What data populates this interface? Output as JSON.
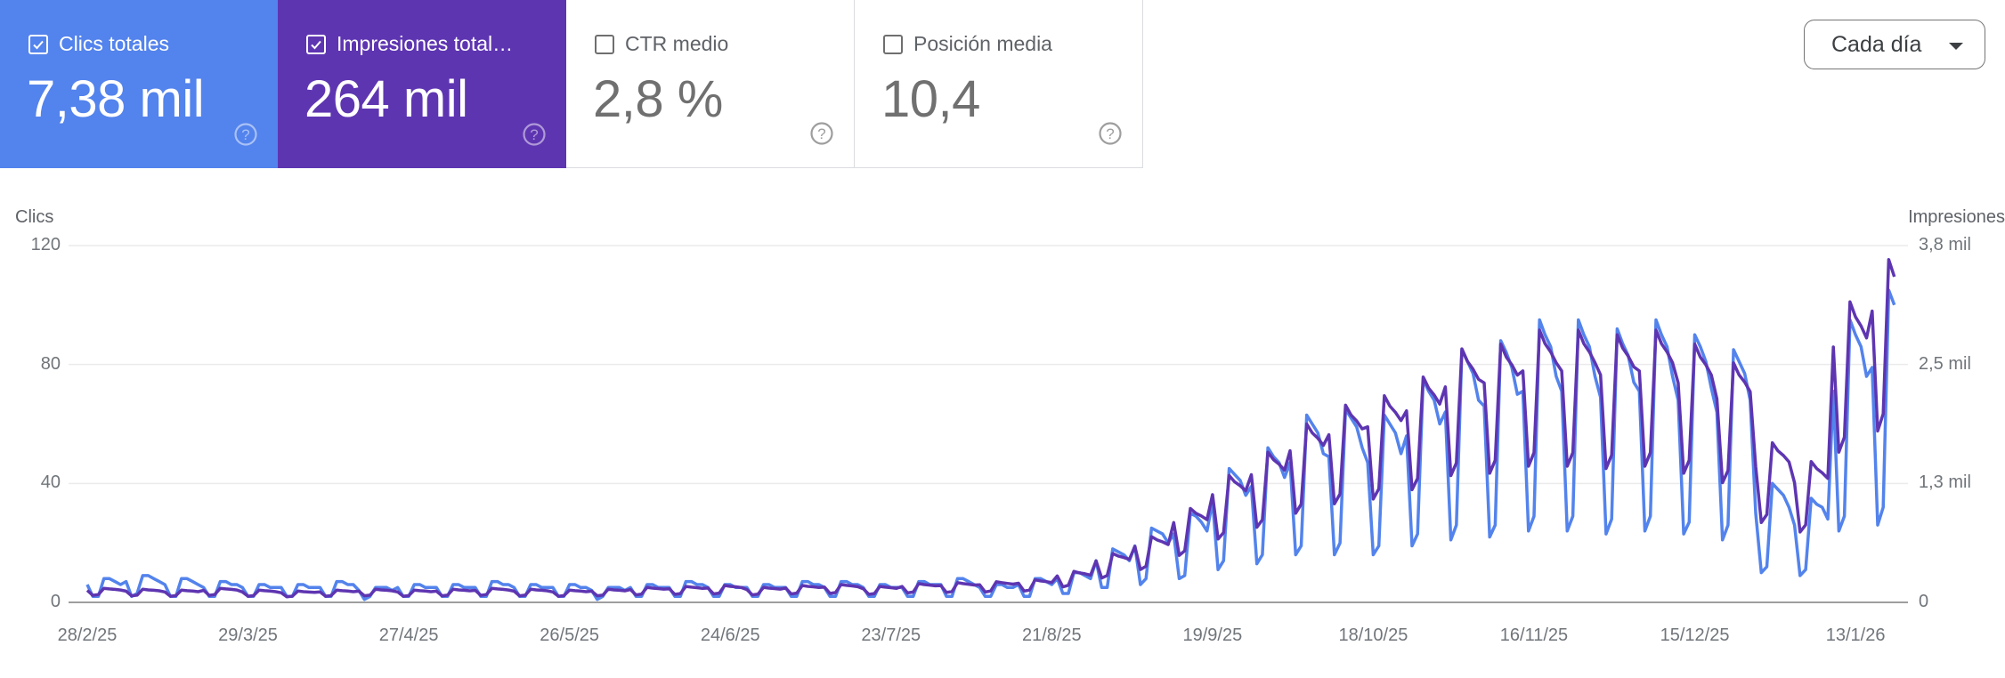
{
  "metrics": [
    {
      "label": "Clics totales",
      "value": "7,38 mil",
      "checked": true,
      "color": "#5383EC",
      "help_icon": "help-circle-icon"
    },
    {
      "label": "Impresiones total…",
      "value": "264 mil",
      "checked": true,
      "color": "#5E35B1",
      "help_icon": "help-circle-icon"
    },
    {
      "label": "CTR medio",
      "value": "2,8 %",
      "checked": false,
      "color": "#ffffff",
      "help_icon": "help-circle-icon"
    },
    {
      "label": "Posición media",
      "value": "10,4",
      "checked": false,
      "color": "#ffffff",
      "help_icon": "help-circle-icon"
    }
  ],
  "granularity": {
    "selected": "Cada día",
    "icon": "caret-down-icon"
  },
  "colors": {
    "clicks": "#5383EC",
    "impressions": "#5E35B1",
    "grid": "#ebebeb",
    "baseline": "#9e9e9e"
  },
  "chart_data": {
    "type": "line",
    "title": "",
    "xlabel": "",
    "ylabel": "Clics",
    "y2label": "Impresiones",
    "left_axis": {
      "label": "Clics",
      "ticks": [
        "0",
        "40",
        "80",
        "120"
      ],
      "range": [
        0,
        120
      ]
    },
    "right_axis": {
      "label": "Impresiones",
      "ticks": [
        "0",
        "1,3 mil",
        "2,5 mil",
        "3,8 mil"
      ],
      "range": [
        0,
        3800
      ]
    },
    "x_ticks": [
      "28/2/25",
      "29/3/25",
      "27/4/25",
      "26/5/25",
      "24/6/25",
      "23/7/25",
      "21/8/25",
      "19/9/25",
      "18/10/25",
      "16/11/25",
      "15/12/25",
      "13/1/26"
    ],
    "x_tick_day_index": [
      0,
      29,
      58,
      87,
      116,
      145,
      174,
      203,
      232,
      261,
      290,
      319
    ],
    "x_start": "28/2/25",
    "x_step": "1 day",
    "grid": true,
    "legend": "metric cards above chart",
    "series": [
      {
        "name": "Clics",
        "axis": "left",
        "color": "#5383EC",
        "values": [
          6,
          2,
          2,
          8,
          8,
          7,
          6,
          7,
          2,
          3,
          9,
          9,
          8,
          7,
          6,
          2,
          2,
          8,
          8,
          7,
          6,
          5,
          2,
          2,
          7,
          7,
          6,
          6,
          5,
          2,
          2,
          6,
          6,
          5,
          5,
          5,
          2,
          2,
          6,
          6,
          5,
          5,
          5,
          2,
          2,
          7,
          7,
          6,
          6,
          4,
          1,
          2,
          5,
          5,
          5,
          4,
          5,
          2,
          2,
          6,
          6,
          5,
          5,
          5,
          2,
          2,
          6,
          6,
          5,
          5,
          5,
          2,
          2,
          7,
          7,
          6,
          6,
          5,
          2,
          2,
          6,
          6,
          5,
          5,
          5,
          2,
          2,
          6,
          6,
          5,
          5,
          4,
          1,
          2,
          5,
          5,
          5,
          4,
          5,
          2,
          2,
          6,
          6,
          5,
          5,
          5,
          2,
          2,
          7,
          7,
          6,
          6,
          5,
          2,
          2,
          6,
          6,
          5,
          5,
          5,
          2,
          2,
          6,
          6,
          5,
          5,
          5,
          2,
          2,
          7,
          7,
          6,
          6,
          5,
          2,
          2,
          7,
          7,
          6,
          6,
          5,
          2,
          2,
          6,
          6,
          5,
          5,
          5,
          2,
          2,
          7,
          7,
          6,
          6,
          6,
          2,
          2,
          8,
          8,
          7,
          6,
          5,
          2,
          2,
          6,
          6,
          5,
          5,
          6,
          2,
          2,
          8,
          8,
          7,
          6,
          8,
          3,
          3,
          10,
          10,
          9,
          8,
          14,
          5,
          5,
          18,
          17,
          16,
          14,
          19,
          6,
          8,
          25,
          24,
          23,
          20,
          23,
          8,
          9,
          30,
          29,
          27,
          24,
          34,
          11,
          14,
          45,
          43,
          41,
          36,
          39,
          13,
          16,
          52,
          49,
          47,
          42,
          47,
          16,
          19,
          63,
          60,
          57,
          50,
          49,
          16,
          20,
          65,
          62,
          59,
          52,
          47,
          16,
          19,
          63,
          60,
          57,
          50,
          56,
          19,
          23,
          75,
          71,
          68,
          60,
          64,
          21,
          26,
          85,
          81,
          77,
          68,
          66,
          22,
          26,
          88,
          84,
          79,
          70,
          71,
          24,
          29,
          95,
          90,
          86,
          76,
          71,
          24,
          29,
          95,
          90,
          86,
          76,
          69,
          23,
          28,
          92,
          87,
          83,
          74,
          71,
          24,
          29,
          95,
          90,
          86,
          76,
          68,
          23,
          27,
          90,
          86,
          81,
          72,
          64,
          21,
          26,
          85,
          81,
          77,
          68,
          30,
          10,
          12,
          40,
          38,
          36,
          32,
          26,
          9,
          11,
          35,
          33,
          32,
          28,
          71,
          24,
          29,
          95,
          90,
          86,
          76,
          79,
          26,
          32,
          105,
          100
        ]
      },
      {
        "name": "Impresiones",
        "axis": "right",
        "color": "#5E35B1",
        "values": [
          128,
          75,
          83,
          150,
          143,
          138,
          132,
          119,
          70,
          77,
          140,
          133,
          129,
          123,
          111,
          65,
          72,
          130,
          124,
          120,
          114,
          128,
          75,
          83,
          150,
          143,
          138,
          132,
          111,
          65,
          72,
          130,
          124,
          120,
          114,
          102,
          60,
          66,
          120,
          114,
          110,
          106,
          111,
          65,
          72,
          130,
          124,
          120,
          114,
          119,
          70,
          77,
          140,
          133,
          129,
          123,
          111,
          65,
          72,
          130,
          124,
          120,
          114,
          119,
          70,
          77,
          140,
          133,
          129,
          123,
          128,
          75,
          83,
          150,
          143,
          138,
          132,
          119,
          70,
          77,
          140,
          133,
          129,
          123,
          111,
          65,
          72,
          130,
          124,
          120,
          114,
          119,
          70,
          77,
          140,
          133,
          129,
          123,
          136,
          80,
          88,
          160,
          152,
          147,
          141,
          145,
          85,
          94,
          170,
          162,
          156,
          150,
          153,
          90,
          99,
          180,
          171,
          166,
          158,
          136,
          80,
          88,
          160,
          152,
          147,
          141,
          153,
          90,
          99,
          180,
          171,
          166,
          158,
          162,
          95,
          105,
          190,
          181,
          175,
          167,
          145,
          85,
          94,
          170,
          162,
          156,
          150,
          170,
          100,
          110,
          200,
          190,
          184,
          176,
          179,
          105,
          116,
          210,
          200,
          193,
          185,
          187,
          110,
          121,
          220,
          209,
          202,
          194,
          204,
          120,
          132,
          240,
          228,
          221,
          211,
          281,
          165,
          182,
          330,
          314,
          304,
          290,
          442,
          260,
          286,
          520,
          494,
          478,
          458,
          595,
          350,
          385,
          700,
          665,
          644,
          616,
          850,
          500,
          550,
          1000,
          950,
          920,
          880,
          1148,
          675,
          743,
          1350,
          1283,
          1242,
          1188,
          1360,
          800,
          880,
          1600,
          1520,
          1472,
          1408,
          1615,
          950,
          1045,
          1900,
          1805,
          1748,
          1672,
          1785,
          1050,
          1155,
          2100,
          1995,
          1932,
          1848,
          1870,
          1100,
          1210,
          2200,
          2090,
          2024,
          1936,
          2040,
          1200,
          1320,
          2400,
          2280,
          2208,
          2112,
          2295,
          1350,
          1485,
          2700,
          2565,
          2484,
          2376,
          2338,
          1375,
          1513,
          2750,
          2613,
          2530,
          2420,
          2465,
          1450,
          1595,
          2900,
          2755,
          2668,
          2552,
          2465,
          1450,
          1595,
          2900,
          2755,
          2668,
          2552,
          2423,
          1425,
          1568,
          2850,
          2708,
          2622,
          2508,
          2465,
          1450,
          1595,
          2900,
          2755,
          2668,
          2552,
          2338,
          1375,
          1513,
          2750,
          2613,
          2530,
          2420,
          2168,
          1275,
          1403,
          2550,
          2423,
          2346,
          2244,
          1445,
          850,
          935,
          1700,
          1615,
          1564,
          1496,
          1275,
          750,
          825,
          1500,
          1425,
          1380,
          1320,
          2720,
          1600,
          1760,
          3200,
          3040,
          2944,
          2816,
          3103,
          1825,
          2008,
          3650,
          3468
        ]
      }
    ]
  }
}
